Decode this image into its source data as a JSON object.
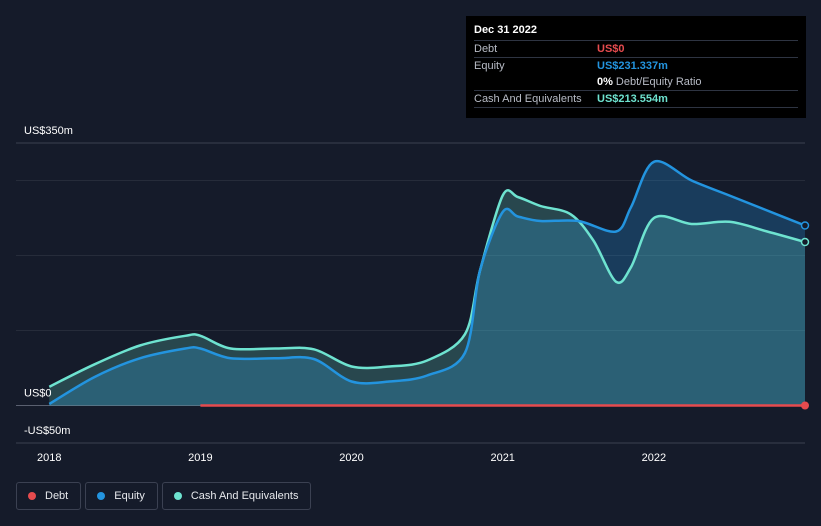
{
  "tooltip": {
    "date": "Dec 31 2022",
    "debt_label": "Debt",
    "debt_value": "US$0",
    "equity_label": "Equity",
    "equity_value": "US$231.337m",
    "ratio_value": "0%",
    "ratio_label": "Debt/Equity Ratio",
    "cash_label": "Cash And Equivalents",
    "cash_value": "US$213.554m"
  },
  "legend": {
    "debt": "Debt",
    "equity": "Equity",
    "cash": "Cash And Equivalents"
  },
  "colors": {
    "debt": "#e64b4e",
    "equity": "#2394df",
    "cash": "#6ee3d0",
    "background": "#151b2a"
  },
  "chart_data": {
    "type": "area",
    "title": "",
    "y_tick_labels": [
      {
        "value": 350,
        "label": "US$350m"
      },
      {
        "value": 0,
        "label": "US$0"
      },
      {
        "value": -50,
        "label": "-US$50m"
      }
    ],
    "ylim": [
      -50,
      350
    ],
    "gridlines_at": [
      300,
      200,
      100
    ],
    "x_ticks": [
      {
        "value": 2018.0,
        "label": "2018"
      },
      {
        "value": 2019.0,
        "label": "2019"
      },
      {
        "value": 2020.0,
        "label": "2020"
      },
      {
        "value": 2021.0,
        "label": "2021"
      },
      {
        "value": 2022.0,
        "label": "2022"
      }
    ],
    "xlim": [
      2017.78,
      2023.0
    ],
    "series": [
      {
        "name": "Cash And Equivalents",
        "points": [
          [
            2018.0,
            25
          ],
          [
            2018.3,
            55
          ],
          [
            2018.6,
            80
          ],
          [
            2018.9,
            93
          ],
          [
            2019.0,
            93
          ],
          [
            2019.2,
            76
          ],
          [
            2019.5,
            76
          ],
          [
            2019.75,
            75
          ],
          [
            2020.0,
            52
          ],
          [
            2020.25,
            52
          ],
          [
            2020.5,
            60
          ],
          [
            2020.75,
            95
          ],
          [
            2020.85,
            180
          ],
          [
            2021.0,
            280
          ],
          [
            2021.1,
            278
          ],
          [
            2021.25,
            266
          ],
          [
            2021.45,
            255
          ],
          [
            2021.6,
            220
          ],
          [
            2021.75,
            165
          ],
          [
            2021.85,
            185
          ],
          [
            2022.0,
            250
          ],
          [
            2022.25,
            242
          ],
          [
            2022.5,
            245
          ],
          [
            2022.75,
            232
          ],
          [
            2023.0,
            218
          ]
        ]
      },
      {
        "name": "Equity",
        "points": [
          [
            2018.0,
            2
          ],
          [
            2018.3,
            38
          ],
          [
            2018.6,
            63
          ],
          [
            2018.9,
            76
          ],
          [
            2019.0,
            76
          ],
          [
            2019.2,
            63
          ],
          [
            2019.5,
            63
          ],
          [
            2019.75,
            62
          ],
          [
            2020.0,
            32
          ],
          [
            2020.25,
            32
          ],
          [
            2020.5,
            40
          ],
          [
            2020.75,
            70
          ],
          [
            2020.85,
            180
          ],
          [
            2021.0,
            258
          ],
          [
            2021.1,
            252
          ],
          [
            2021.25,
            246
          ],
          [
            2021.5,
            246
          ],
          [
            2021.75,
            232
          ],
          [
            2021.85,
            265
          ],
          [
            2022.0,
            325
          ],
          [
            2022.25,
            300
          ],
          [
            2022.5,
            280
          ],
          [
            2022.75,
            260
          ],
          [
            2023.0,
            240
          ]
        ]
      },
      {
        "name": "Debt",
        "points": [
          [
            2019.0,
            0
          ],
          [
            2023.0,
            0
          ]
        ]
      }
    ]
  }
}
